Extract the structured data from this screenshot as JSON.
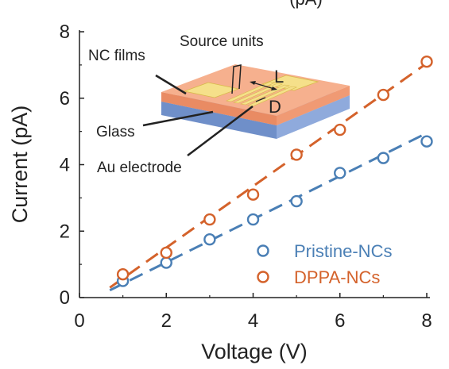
{
  "chart_data": {
    "type": "scatter",
    "title": "",
    "xlabel": "Voltage (V)",
    "ylabel": "Current (pA)",
    "top_partial_label": "(pA)",
    "xlim": [
      0,
      8
    ],
    "ylim": [
      0,
      8
    ],
    "x_ticks": [
      0,
      2,
      4,
      6,
      8
    ],
    "y_ticks": [
      0,
      2,
      4,
      6,
      8
    ],
    "grid": false,
    "legend_position": "bottom-right",
    "series": [
      {
        "name": "Pristine-NCs",
        "color": "#4a7fb5",
        "marker": "open-circle",
        "x": [
          1,
          2,
          3,
          4,
          5,
          6,
          7,
          8
        ],
        "y": [
          0.5,
          1.05,
          1.75,
          2.35,
          2.9,
          3.75,
          4.2,
          4.7
        ],
        "fit": {
          "x": [
            0.7,
            8.0
          ],
          "y": [
            0.22,
            4.95
          ]
        }
      },
      {
        "name": "DPPA-NCs",
        "color": "#d4622b",
        "marker": "open-circle",
        "x": [
          1,
          2,
          3,
          4,
          5,
          6,
          7,
          8
        ],
        "y": [
          0.7,
          1.35,
          2.35,
          3.1,
          4.3,
          5.05,
          6.1,
          7.1
        ],
        "fit": {
          "x": [
            0.7,
            8.0
          ],
          "y": [
            0.3,
            7.05
          ]
        }
      }
    ],
    "inset": {
      "labels": {
        "source_units": "Source units",
        "nc_films": "NC films",
        "glass": "Glass",
        "au_electrode": "Au electrode",
        "L": "L",
        "D": "D"
      },
      "colors": {
        "glass": "#8faadc",
        "film": "#f4a07a",
        "electrode": "#f5e08a"
      }
    }
  }
}
